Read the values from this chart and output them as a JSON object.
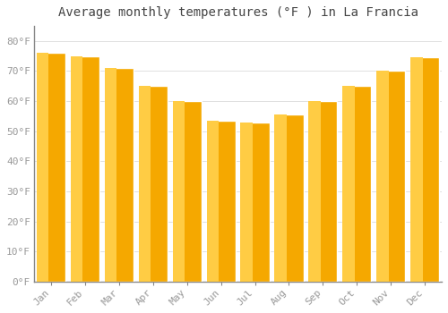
{
  "title": "Average monthly temperatures (°F ) in La Francia",
  "months": [
    "Jan",
    "Feb",
    "Mar",
    "Apr",
    "May",
    "Jun",
    "Jul",
    "Aug",
    "Sep",
    "Oct",
    "Nov",
    "Dec"
  ],
  "values": [
    76,
    75,
    71,
    65,
    60,
    53.5,
    53,
    55.5,
    60,
    65,
    70,
    74.5
  ],
  "bar_color_left": "#FFCC44",
  "bar_color_right": "#F5A800",
  "bar_edge_color": "#FFFFFF",
  "background_color": "#FFFFFF",
  "grid_color": "#E0E0E0",
  "tick_color": "#999999",
  "title_color": "#444444",
  "ylim": [
    0,
    85
  ],
  "yticks": [
    0,
    10,
    20,
    30,
    40,
    50,
    60,
    70,
    80
  ],
  "ytick_labels": [
    "0°F",
    "10°F",
    "20°F",
    "30°F",
    "40°F",
    "50°F",
    "60°F",
    "70°F",
    "80°F"
  ],
  "title_fontsize": 10,
  "tick_fontsize": 8,
  "bar_width": 0.85
}
